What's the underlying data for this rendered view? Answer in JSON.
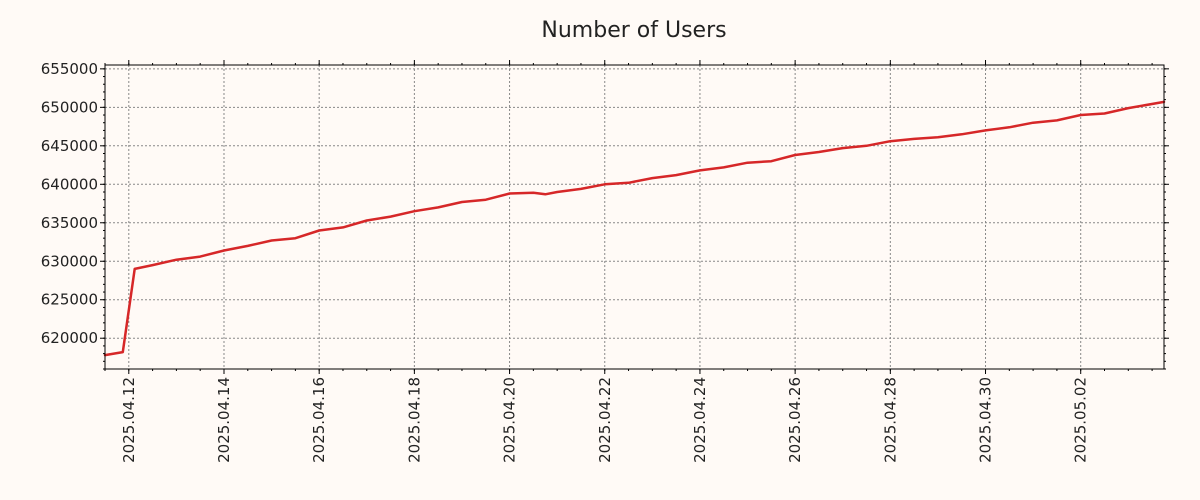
{
  "chart_data": {
    "type": "line",
    "title": "Number of Users",
    "xlabel": "",
    "ylabel": "",
    "x_axis_type": "date",
    "xlim": [
      "2025-04-11 12:00",
      "2025-05-03 18:00"
    ],
    "ylim": [
      616000,
      655500
    ],
    "y_ticks": [
      620000,
      625000,
      630000,
      635000,
      640000,
      645000,
      650000,
      655000
    ],
    "x_ticks": [
      "2025.04.12",
      "2025.04.14",
      "2025.04.16",
      "2025.04.18",
      "2025.04.20",
      "2025.04.22",
      "2025.04.24",
      "2025.04.26",
      "2025.04.28",
      "2025.04.30",
      "2025.05.02"
    ],
    "grid": true,
    "legend": "none",
    "series": [
      {
        "color": "#d62728",
        "x": [
          "2025-04-11 12:00",
          "2025-04-11 21:00",
          "2025-04-12 03:00",
          "2025-04-12 12:00",
          "2025-04-13 00:00",
          "2025-04-13 12:00",
          "2025-04-14 00:00",
          "2025-04-14 12:00",
          "2025-04-15 00:00",
          "2025-04-15 12:00",
          "2025-04-16 00:00",
          "2025-04-16 12:00",
          "2025-04-17 00:00",
          "2025-04-17 12:00",
          "2025-04-18 00:00",
          "2025-04-18 12:00",
          "2025-04-19 00:00",
          "2025-04-19 12:00",
          "2025-04-20 00:00",
          "2025-04-20 12:00",
          "2025-04-20 18:00",
          "2025-04-21 00:00",
          "2025-04-21 12:00",
          "2025-04-22 00:00",
          "2025-04-22 12:00",
          "2025-04-23 00:00",
          "2025-04-23 12:00",
          "2025-04-24 00:00",
          "2025-04-24 12:00",
          "2025-04-25 00:00",
          "2025-04-25 12:00",
          "2025-04-26 00:00",
          "2025-04-26 12:00",
          "2025-04-27 00:00",
          "2025-04-27 12:00",
          "2025-04-28 00:00",
          "2025-04-28 12:00",
          "2025-04-29 00:00",
          "2025-04-29 12:00",
          "2025-04-30 00:00",
          "2025-04-30 12:00",
          "2025-05-01 00:00",
          "2025-05-01 12:00",
          "2025-05-02 00:00",
          "2025-05-02 12:00",
          "2025-05-03 00:00",
          "2025-05-03 18:00"
        ],
        "values": [
          617800,
          618200,
          629000,
          629500,
          630200,
          630600,
          631400,
          632000,
          632700,
          633000,
          634000,
          634400,
          635300,
          635800,
          636500,
          637000,
          637700,
          638000,
          638800,
          638900,
          638700,
          639000,
          639400,
          640000,
          640200,
          640800,
          641200,
          641800,
          642200,
          642800,
          643000,
          643800,
          644200,
          644700,
          645000,
          645600,
          645900,
          646100,
          646500,
          647000,
          647400,
          648000,
          648300,
          649000,
          649200,
          649900,
          650700
        ]
      }
    ]
  }
}
